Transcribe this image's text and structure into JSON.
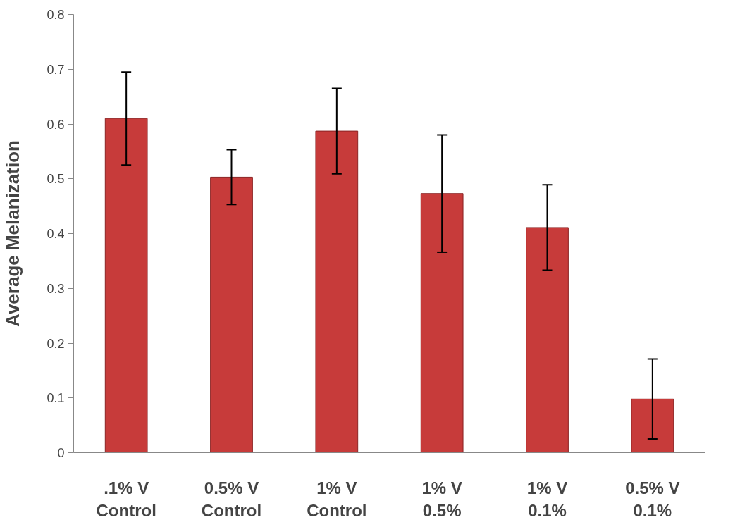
{
  "chart_data": {
    "type": "bar",
    "ylabel": "Average Melanization",
    "categories": [
      ".1% V\nControl",
      "0.5% V\nControl",
      "1% V\nControl",
      "1% V\n0.5%",
      "1% V\n0.1%",
      "0.5% V\n0.1%"
    ],
    "values": [
      0.61,
      0.503,
      0.587,
      0.473,
      0.411,
      0.098
    ],
    "errors": [
      0.085,
      0.05,
      0.078,
      0.107,
      0.078,
      0.073
    ],
    "color": "#c73b3a",
    "ylim": [
      0,
      0.8
    ],
    "yticks": [
      {
        "value": 0,
        "label": "0"
      },
      0.1,
      0.2,
      0.3,
      0.4,
      0.5,
      0.6,
      0.7,
      0.8
    ],
    "grid": false
  }
}
